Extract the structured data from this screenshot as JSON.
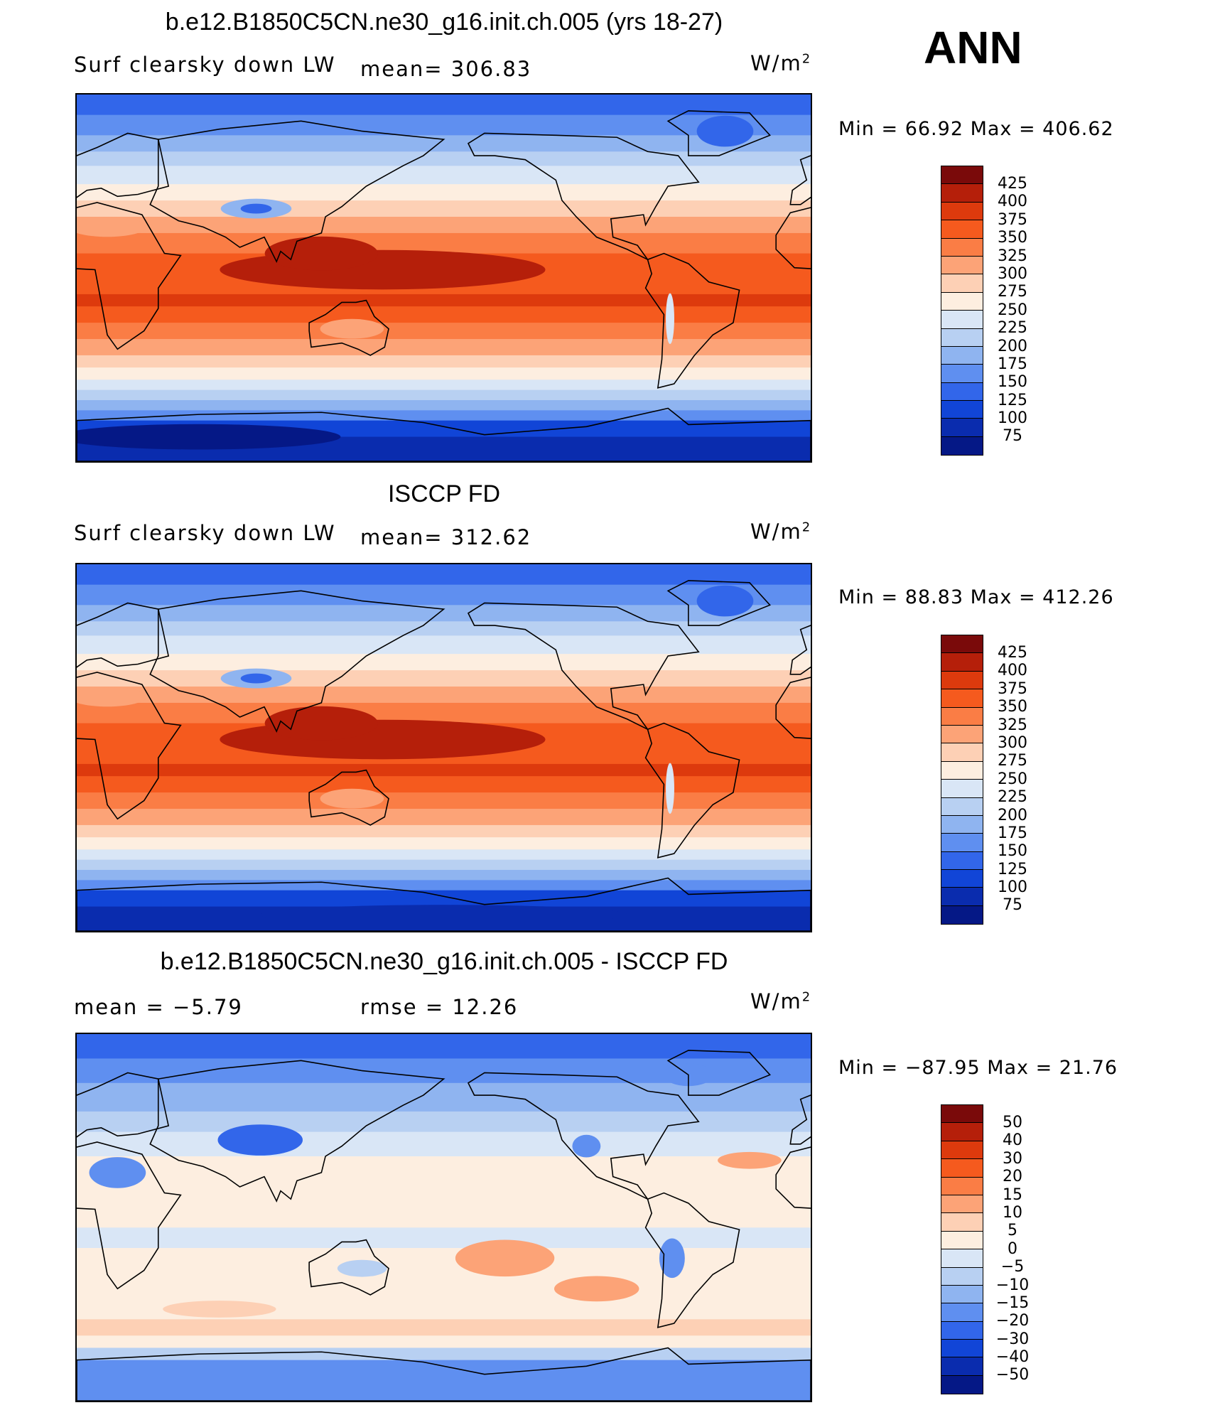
{
  "season": "ANN",
  "panels": [
    {
      "title": "b.e12.B1850C5CN.ne30_g16.init.ch.005 (yrs 18-27)",
      "variable": "Surf clearsky down LW",
      "stat_text": "mean= 306.83",
      "units": "W/m",
      "units_exp": "2",
      "minmax_text": "Min =   66.92 Max = 406.62",
      "colorbar_labels": [
        "425",
        "400",
        "375",
        "350",
        "325",
        "300",
        "275",
        "250",
        "225",
        "200",
        "175",
        "150",
        "125",
        "100",
        "75"
      ],
      "colorbar_colors": [
        "#7a0a0a",
        "#b51f0a",
        "#dd3a0d",
        "#f55a1e",
        "#fa7d45",
        "#fca377",
        "#fdd0b5",
        "#fdeee0",
        "#d9e6f6",
        "#b8d0f2",
        "#8fb4f0",
        "#5f8ff0",
        "#3266ea",
        "#1145d7",
        "#0a2cae",
        "#051886"
      ],
      "field": "lw_model"
    },
    {
      "title": "ISCCP FD",
      "variable": "Surf clearsky down LW",
      "stat_text": "mean= 312.62",
      "units": "W/m",
      "units_exp": "2",
      "minmax_text": "Min =   88.83 Max = 412.26",
      "colorbar_labels": [
        "425",
        "400",
        "375",
        "350",
        "325",
        "300",
        "275",
        "250",
        "225",
        "200",
        "175",
        "150",
        "125",
        "100",
        "75"
      ],
      "colorbar_colors": [
        "#7a0a0a",
        "#b51f0a",
        "#dd3a0d",
        "#f55a1e",
        "#fa7d45",
        "#fca377",
        "#fdd0b5",
        "#fdeee0",
        "#d9e6f6",
        "#b8d0f2",
        "#8fb4f0",
        "#5f8ff0",
        "#3266ea",
        "#1145d7",
        "#0a2cae",
        "#051886"
      ],
      "field": "lw_obs"
    },
    {
      "title": "b.e12.B1850C5CN.ne30_g16.init.ch.005 - ISCCP FD",
      "variable": "",
      "stat_text": "mean =   −5.79",
      "stat_text2": "rmse =   12.26",
      "units": "W/m",
      "units_exp": "2",
      "minmax_text": "Min = −87.95 Max =   21.76",
      "colorbar_labels": [
        "50",
        "40",
        "30",
        "20",
        "15",
        "10",
        "5",
        "0",
        "−5",
        "−10",
        "−15",
        "−20",
        "−30",
        "−40",
        "−50"
      ],
      "colorbar_colors": [
        "#7a0a0a",
        "#b51f0a",
        "#dd3a0d",
        "#f55a1e",
        "#fa7d45",
        "#fca377",
        "#fdd0b5",
        "#fdeee0",
        "#d9e6f6",
        "#b8d0f2",
        "#8fb4f0",
        "#5f8ff0",
        "#3266ea",
        "#1145d7",
        "#0a2cae",
        "#051886"
      ],
      "field": "lw_diff"
    }
  ]
}
